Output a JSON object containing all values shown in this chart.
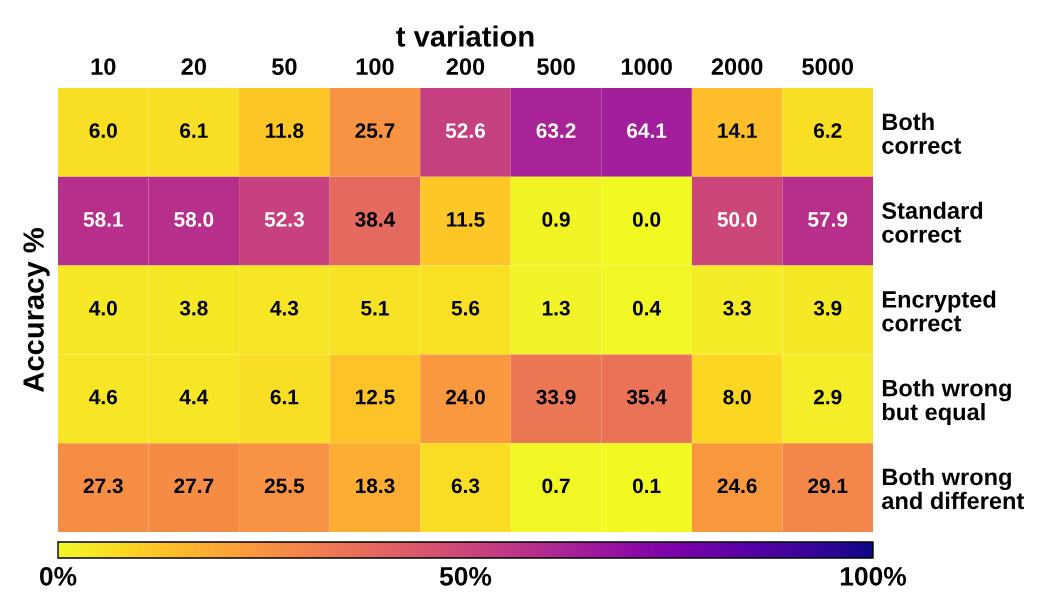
{
  "chart_data": {
    "type": "heatmap",
    "xlabel": "t variation",
    "ylabel": "Accuracy %",
    "categories": [
      "10",
      "20",
      "50",
      "100",
      "200",
      "500",
      "1000",
      "2000",
      "5000"
    ],
    "y_categories": [
      "Both\ncorrect",
      "Standard\ncorrect",
      "Encrypted\ncorrect",
      "Both wrong\nbut equal",
      "Both wrong\nand different"
    ],
    "cells": [
      [
        6.0,
        6.1,
        11.8,
        25.7,
        52.6,
        63.2,
        64.1,
        14.1,
        6.2
      ],
      [
        58.1,
        58.0,
        52.3,
        38.4,
        11.5,
        0.9,
        0.0,
        50.0,
        57.9
      ],
      [
        4.0,
        3.8,
        4.3,
        5.1,
        5.6,
        1.3,
        0.4,
        3.3,
        3.9
      ],
      [
        4.6,
        4.4,
        6.1,
        12.5,
        24.0,
        33.9,
        35.4,
        8.0,
        2.9
      ],
      [
        27.3,
        27.7,
        25.5,
        18.3,
        6.3,
        0.7,
        0.1,
        24.6,
        29.1
      ]
    ],
    "cell_labels": [
      [
        "6.0",
        "6.1",
        "11.8",
        "25.7",
        "52.6",
        "63.2",
        "64.1",
        "14.1",
        "6.2"
      ],
      [
        "58.1",
        "58.0",
        "52.3",
        "38.4",
        "11.5",
        "0.9",
        "0.0",
        "50.0",
        "57.9"
      ],
      [
        "4.0",
        "3.8",
        "4.3",
        "5.1",
        "5.6",
        "1.3",
        "0.4",
        "3.3",
        "3.9"
      ],
      [
        "4.6",
        "4.4",
        "6.1",
        "12.5",
        "24.0",
        "33.9",
        "35.4",
        "8.0",
        "2.9"
      ],
      [
        "27.3",
        "27.7",
        "25.5",
        "18.3",
        "6.3",
        "0.7",
        "0.1",
        "24.6",
        "29.1"
      ]
    ],
    "clim": [
      0,
      100
    ],
    "cticks": [
      {
        "value": 0,
        "label": "0%"
      },
      {
        "value": 50,
        "label": "50%"
      },
      {
        "value": 100,
        "label": "100%"
      }
    ]
  }
}
